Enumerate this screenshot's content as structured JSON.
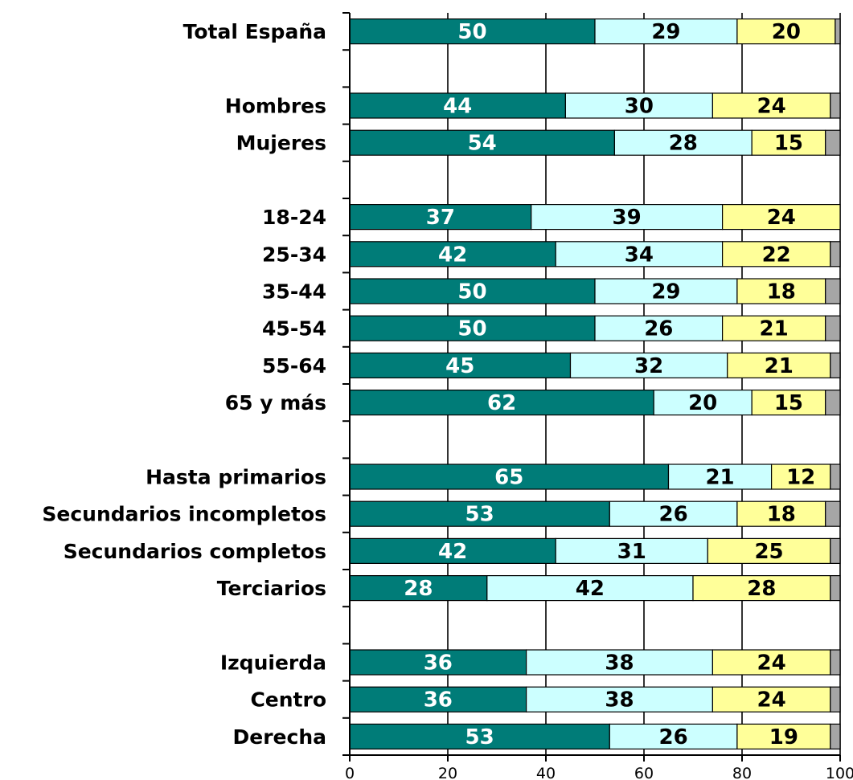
{
  "chart_data": {
    "type": "bar",
    "orientation": "horizontal",
    "stacked": true,
    "xlim": [
      0,
      100
    ],
    "x_ticks": [
      "0",
      "20",
      "40",
      "60",
      "80",
      "100"
    ],
    "grid": "vertical lines at each x tick",
    "colors": [
      "#007c78",
      "#ccffff",
      "#ffff99",
      "#a6a6a6"
    ],
    "categories": [
      "Total España",
      "",
      "Hombres",
      "Mujeres",
      "",
      "18-24",
      "25-34",
      "35-44",
      "45-54",
      "55-64",
      "65 y más",
      "",
      "Hasta primarios",
      "Secundarios incompletos",
      "Secundarios completos",
      "Terciarios",
      "",
      "Izquierda",
      "Centro",
      "Derecha"
    ],
    "series": [
      {
        "values": [
          50,
          null,
          44,
          54,
          null,
          37,
          42,
          50,
          50,
          45,
          62,
          null,
          65,
          53,
          42,
          28,
          null,
          36,
          36,
          53
        ]
      },
      {
        "values": [
          29,
          null,
          30,
          28,
          null,
          39,
          34,
          29,
          26,
          32,
          20,
          null,
          21,
          26,
          31,
          42,
          null,
          38,
          38,
          26
        ]
      },
      {
        "values": [
          20,
          null,
          24,
          15,
          null,
          24,
          22,
          18,
          21,
          21,
          15,
          null,
          12,
          18,
          25,
          28,
          null,
          24,
          24,
          19
        ]
      },
      {
        "values": [
          1,
          null,
          2,
          3,
          null,
          0,
          2,
          3,
          3,
          2,
          3,
          null,
          2,
          3,
          2,
          2,
          null,
          2,
          2,
          2
        ]
      }
    ]
  }
}
